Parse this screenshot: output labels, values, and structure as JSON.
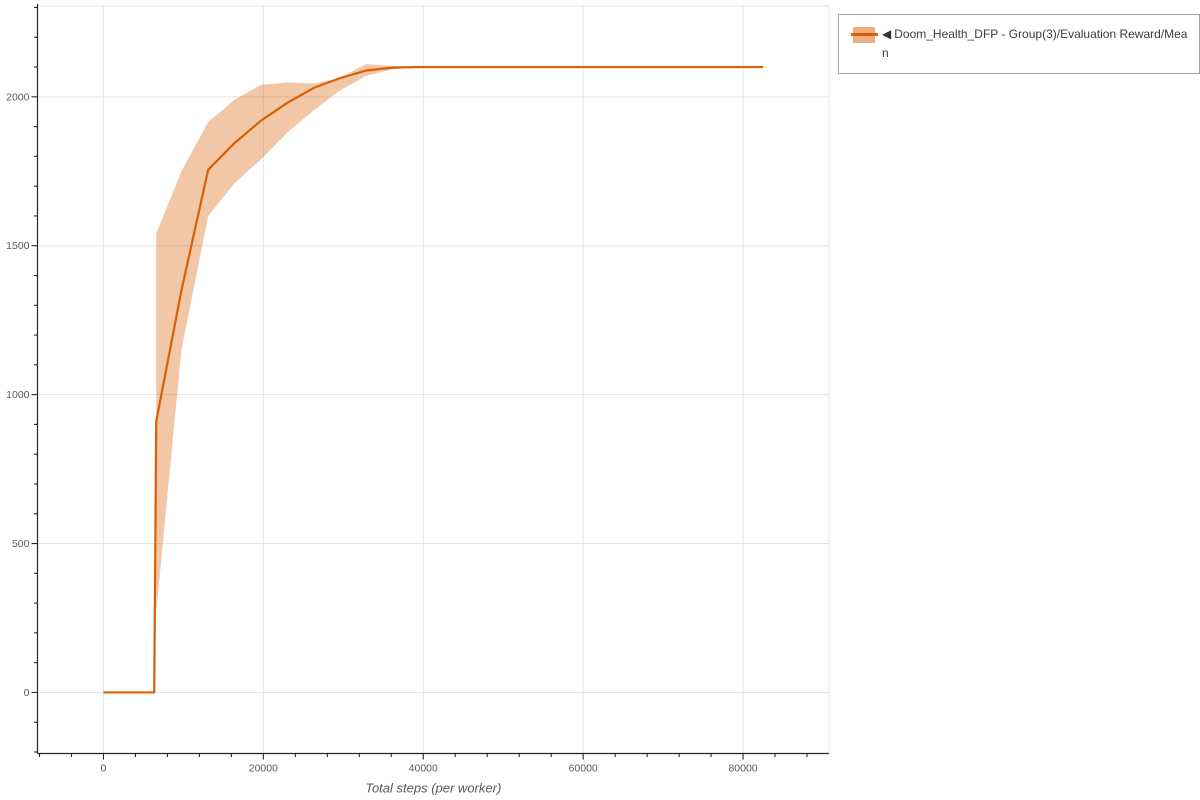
{
  "figure": {
    "background": "#ffffff"
  },
  "legend": {
    "marker": "◀",
    "label": "Doom_Health_DFP - Group(3)/Evaluation Reward/Mean",
    "position": "outside-top-right",
    "border_color": "#a3a3a3",
    "text_color": "#3c3c3c",
    "swatch_band_color": "#efae7d",
    "swatch_line_color": "#d2600a"
  },
  "chart_data": {
    "type": "line",
    "title": "",
    "xlabel": "Total steps (per worker)",
    "ylabel": "",
    "xlim": [
      -8250,
      90750
    ],
    "ylim": [
      -205,
      2305
    ],
    "grid": "major",
    "grid_color": "#e4e4e4",
    "x_ticks": [
      0,
      20000,
      40000,
      60000,
      80000
    ],
    "x_tick_labels": [
      "0",
      "20000",
      "40000",
      "60000",
      "80000"
    ],
    "x_minor": {
      "start": -8000,
      "end": 88000,
      "step": 4000
    },
    "y_ticks": [
      0,
      500,
      1000,
      1500,
      2000
    ],
    "y_tick_labels": [
      "0",
      "500",
      "1000",
      "1500",
      "2000"
    ],
    "y_minor": {
      "start": -200,
      "end": 2300,
      "step": 100
    },
    "series": [
      {
        "name": "Doom_Health_DFP - Group(3)/Evaluation Reward/Mean",
        "color": "#d95f02",
        "band_color": "rgba(217,95,2,0.35)",
        "mean_xy": [
          [
            0,
            0
          ],
          [
            6350,
            0
          ],
          [
            6600,
            910
          ],
          [
            9750,
            1350
          ],
          [
            13100,
            1755
          ],
          [
            16400,
            1845
          ],
          [
            19700,
            1920
          ],
          [
            23000,
            1980
          ],
          [
            26300,
            2030
          ],
          [
            29500,
            2062
          ],
          [
            32800,
            2088
          ],
          [
            36100,
            2098
          ],
          [
            39400,
            2100
          ],
          [
            82500,
            2100
          ]
        ],
        "band_x_lo_hi": [
          [
            6600,
            270,
            1540
          ],
          [
            9750,
            1150,
            1750
          ],
          [
            13100,
            1600,
            1915
          ],
          [
            16400,
            1710,
            1990
          ],
          [
            19700,
            1790,
            2040
          ],
          [
            23000,
            1880,
            2048
          ],
          [
            26300,
            1955,
            2045
          ],
          [
            29500,
            2020,
            2062
          ],
          [
            32800,
            2070,
            2110
          ],
          [
            36100,
            2092,
            2104
          ],
          [
            39400,
            2100,
            2100
          ]
        ]
      }
    ]
  }
}
